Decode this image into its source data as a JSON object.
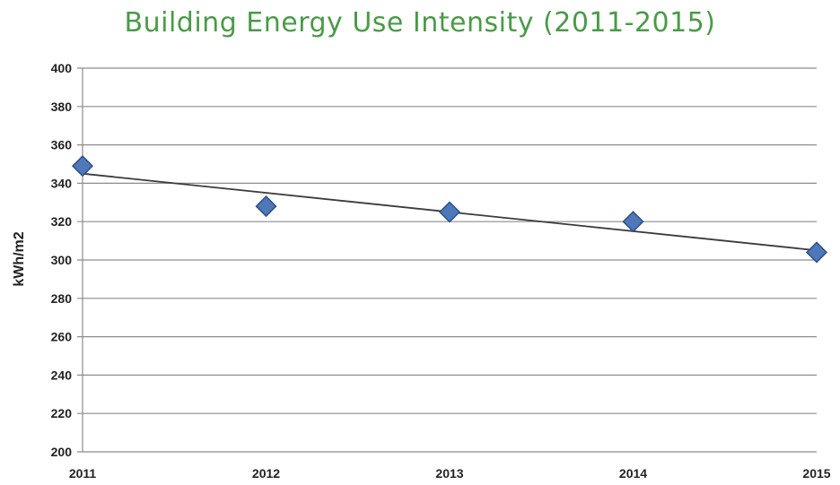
{
  "chart_data": {
    "type": "scatter",
    "title": "Building Energy Use Intensity (2011-2015)",
    "xlabel": "",
    "ylabel": "kWh/m2",
    "x": [
      "2011",
      "2012",
      "2013",
      "2014",
      "2015"
    ],
    "series": [
      {
        "values": [
          349,
          328,
          325,
          320,
          304
        ]
      }
    ],
    "trendline": {
      "type": "linear",
      "start": 345,
      "end": 305
    },
    "ylim": [
      200,
      400
    ],
    "yticks": [
      200,
      220,
      240,
      260,
      280,
      300,
      320,
      340,
      360,
      380,
      400
    ],
    "grid": true,
    "legend": "none",
    "colors": {
      "marker": "#4f78b8",
      "marker_border": "#2e4f8a",
      "trendline": "#3b3b3b",
      "grid": "#8c8c8c",
      "title": "#4a9a48"
    }
  }
}
